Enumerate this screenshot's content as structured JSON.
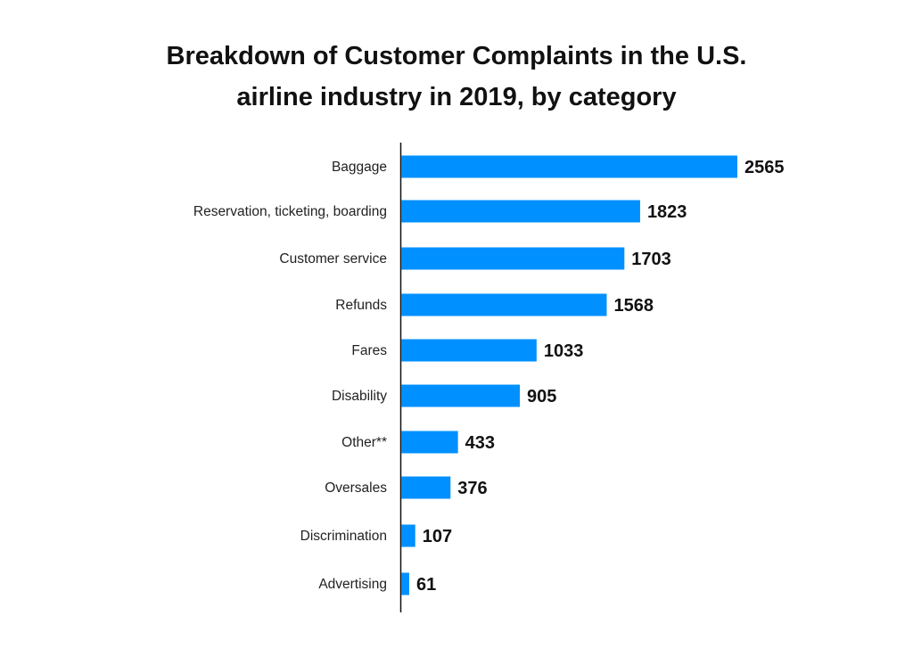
{
  "chart_data": {
    "type": "bar",
    "orientation": "horizontal",
    "title_lines": [
      "Breakdown of Customer Complaints in the U.S.",
      "airline industry in 2019, by category"
    ],
    "categories": [
      "Baggage",
      "Reservation, ticketing, boarding",
      "Customer service",
      "Refunds",
      "Fares",
      "Disability",
      "Other**",
      "Oversales",
      "Discrimination",
      "Advertising"
    ],
    "values": [
      2565,
      1823,
      1703,
      1568,
      1033,
      905,
      433,
      376,
      107,
      61
    ],
    "xlabel": "",
    "ylabel": "",
    "xlim": [
      0,
      2565
    ],
    "grid": false,
    "data_labels": true,
    "bar_color": "#0090FF"
  }
}
